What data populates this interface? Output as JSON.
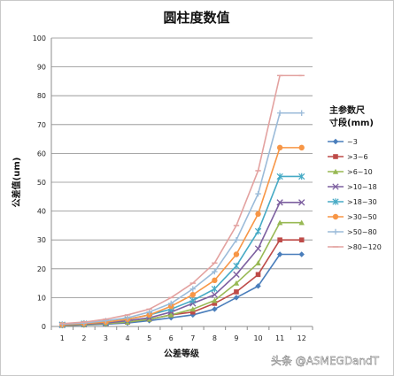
{
  "watermark": "头条 @ASMEGDandT",
  "chart_data": {
    "type": "line",
    "title": "圆柱度数值",
    "xlabel": "公差等级",
    "ylabel": "公差值(um)",
    "legend_title": [
      "主参数尺",
      "寸段(mm)"
    ],
    "legend_position": "right",
    "grid": true,
    "ylim": [
      0,
      100
    ],
    "yticks": [
      0,
      10,
      20,
      30,
      40,
      50,
      60,
      70,
      80,
      90,
      100
    ],
    "x": [
      1,
      2,
      3,
      4,
      5,
      6,
      7,
      8,
      9,
      10,
      11,
      12
    ],
    "series": [
      {
        "name": "~3",
        "color": "#4a7ebb",
        "marker": "diamond",
        "values": [
          0.3,
          0.5,
          0.8,
          1.2,
          2,
          3,
          4,
          6,
          10,
          14,
          25,
          25
        ]
      },
      {
        "name": ">3~6",
        "color": "#be4b48",
        "marker": "square",
        "values": [
          0.4,
          0.6,
          1,
          1.5,
          2.5,
          4,
          5,
          8,
          12,
          18,
          30,
          30
        ]
      },
      {
        "name": ">6~10",
        "color": "#98b954",
        "marker": "triangle",
        "values": [
          0.4,
          0.6,
          1,
          1.5,
          2.5,
          4,
          6,
          9,
          15,
          22,
          36,
          36
        ]
      },
      {
        "name": ">10~18",
        "color": "#7d60a0",
        "marker": "x",
        "values": [
          0.5,
          0.8,
          1.2,
          2,
          3,
          5,
          8,
          11,
          18,
          27,
          43,
          43
        ]
      },
      {
        "name": ">18~30",
        "color": "#46aac5",
        "marker": "star",
        "values": [
          0.6,
          1,
          1.5,
          2.5,
          4,
          6,
          9,
          13,
          21,
          33,
          52,
          52
        ]
      },
      {
        "name": ">30~50",
        "color": "#f79646",
        "marker": "circle",
        "values": [
          0.6,
          1,
          1.5,
          2.5,
          4,
          7,
          11,
          16,
          25,
          39,
          62,
          62
        ]
      },
      {
        "name": ">50~80",
        "color": "#9bbbd9",
        "marker": "plus",
        "values": [
          0.8,
          1.2,
          2,
          3,
          5,
          8,
          13,
          19,
          30,
          46,
          74,
          74
        ]
      },
      {
        "name": ">80~120",
        "color": "#e3a2a0",
        "marker": "dash",
        "values": [
          1,
          1.5,
          2.5,
          4,
          6,
          10,
          15,
          22,
          35,
          54,
          87,
          87
        ]
      }
    ]
  }
}
